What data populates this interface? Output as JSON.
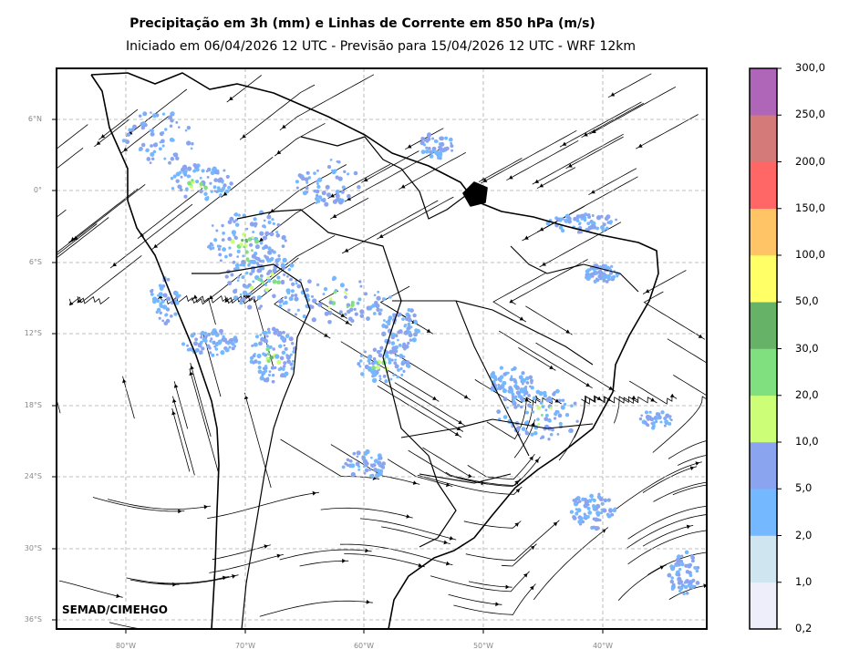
{
  "title": {
    "line1": "Precipitação em 3h (mm) e Linhas de Corrente em 850 hPa (m/s)",
    "line2": "Iniciado em 06/04/2026 12 UTC - Previsão para 15/04/2026 12 UTC - WRF 12km"
  },
  "map": {
    "lat_labels": [
      "6°N",
      "0°",
      "6°S",
      "12°S",
      "18°S",
      "24°S",
      "30°S",
      "36°S"
    ],
    "lon_labels": [
      "80°W",
      "70°W",
      "60°W",
      "50°W",
      "40°W"
    ],
    "credit": "SEMAD/CIMEHGO"
  },
  "colorbar": {
    "labels": [
      "0,2",
      "1,0",
      "2,0",
      "5,0",
      "10,0",
      "20,0",
      "30,0",
      "50,0",
      "100,0",
      "150,0",
      "200,0",
      "250,0",
      "300,0"
    ],
    "colors": [
      "#eeeefa",
      "#cfe6f0",
      "#74b9ff",
      "#8aa4f0",
      "#ccff77",
      "#80e080",
      "#66b266",
      "#ffff66",
      "#ffc466",
      "#ff6666",
      "#d47a78",
      "#b066b8"
    ]
  }
}
